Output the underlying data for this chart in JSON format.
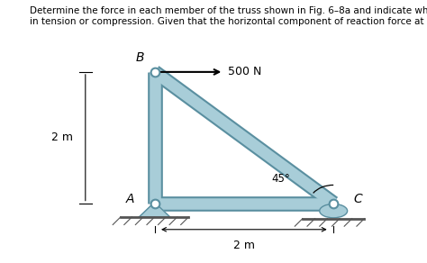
{
  "title_line1": "Determine the force in each member of the truss shown in Fig. 6–8a and indicate whether the members are",
  "title_line2": "in tension or compression. Given that the horizontal component of reaction force at C is equal to zero.",
  "background_color": "#ffffff",
  "truss_color": "#a8cdd8",
  "truss_edge_color": "#5a8fa0",
  "label_A": "A",
  "label_B": "B",
  "label_C": "C",
  "dim_height": "2 m",
  "dim_width": "2 m",
  "force_label": "500 N",
  "angle_label": "45°",
  "member_lw": 9,
  "title_fontsize": 7.5,
  "label_fontsize": 10
}
